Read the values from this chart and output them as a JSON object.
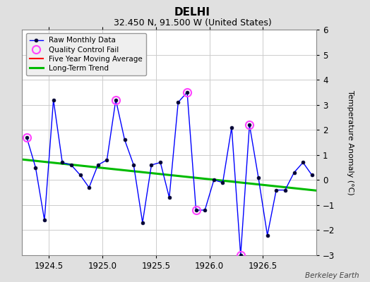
{
  "title": "DELHI",
  "subtitle": "32.450 N, 91.500 W (United States)",
  "credit": "Berkeley Earth",
  "ylabel": "Temperature Anomaly (°C)",
  "xlim": [
    1924.25,
    1927.0
  ],
  "ylim": [
    -3,
    6
  ],
  "yticks": [
    -3,
    -2,
    -1,
    0,
    1,
    2,
    3,
    4,
    5,
    6
  ],
  "xticks": [
    1924.5,
    1925.0,
    1925.5,
    1926.0,
    1926.5
  ],
  "raw_x": [
    1924.292,
    1924.375,
    1924.458,
    1924.542,
    1924.625,
    1924.708,
    1924.792,
    1924.875,
    1924.958,
    1925.042,
    1925.125,
    1925.208,
    1925.292,
    1925.375,
    1925.458,
    1925.542,
    1925.625,
    1925.708,
    1925.792,
    1925.875,
    1925.958,
    1926.042,
    1926.125,
    1926.208,
    1926.292,
    1926.375,
    1926.458,
    1926.542,
    1926.625,
    1926.708,
    1926.792,
    1926.875,
    1926.958
  ],
  "raw_y": [
    1.7,
    0.5,
    -1.6,
    3.2,
    0.7,
    0.6,
    0.2,
    -0.3,
    0.6,
    0.8,
    3.2,
    1.6,
    0.6,
    -1.7,
    0.6,
    0.7,
    -0.7,
    3.1,
    3.5,
    -1.2,
    -1.2,
    0.0,
    -0.1,
    2.1,
    -3.0,
    2.2,
    0.1,
    -2.2,
    -0.4,
    -0.4,
    0.3,
    0.7,
    0.2
  ],
  "qc_fail_x": [
    1924.292,
    1925.125,
    1925.792,
    1925.875,
    1926.292,
    1926.375
  ],
  "qc_fail_y": [
    1.7,
    3.2,
    3.5,
    -1.2,
    -3.0,
    2.2
  ],
  "trend_x": [
    1924.25,
    1927.0
  ],
  "trend_y": [
    0.82,
    -0.42
  ],
  "background_color": "#e0e0e0",
  "plot_bg_color": "#ffffff",
  "raw_line_color": "#0000ff",
  "raw_marker_color": "#000033",
  "qc_marker_color": "#ff44ff",
  "trend_color": "#00bb00",
  "mavg_color": "#ff0000",
  "grid_color": "#cccccc",
  "title_fontsize": 11,
  "subtitle_fontsize": 9,
  "label_fontsize": 8,
  "tick_fontsize": 8.5
}
